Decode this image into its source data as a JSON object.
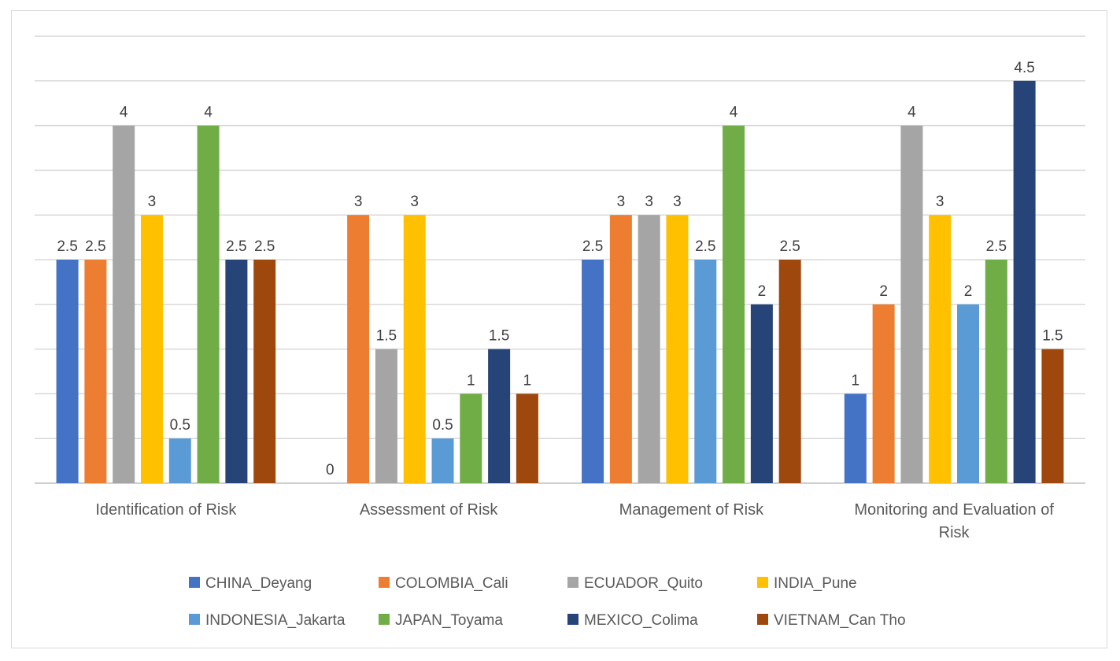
{
  "chart_data": {
    "type": "bar",
    "title": "",
    "xlabel": "",
    "ylabel": "",
    "ylim": [
      0,
      5
    ],
    "grid_step": 0.5,
    "grid": true,
    "legend_position": "bottom",
    "categories": [
      [
        "Identification of Risk"
      ],
      [
        "Assessment of Risk"
      ],
      [
        "Management of Risk"
      ],
      [
        "Monitoring and Evaluation of",
        "Risk"
      ]
    ],
    "series": [
      {
        "name": "CHINA_Deyang",
        "color": "#4472c4",
        "values": [
          2.5,
          0,
          2.5,
          1
        ]
      },
      {
        "name": "COLOMBIA_Cali",
        "color": "#ed7d31",
        "values": [
          2.5,
          3,
          3,
          2
        ]
      },
      {
        "name": "ECUADOR_Quito",
        "color": "#a5a5a5",
        "values": [
          4,
          1.5,
          3,
          4
        ]
      },
      {
        "name": "INDIA_Pune",
        "color": "#ffc000",
        "values": [
          3,
          3,
          3,
          3
        ]
      },
      {
        "name": "INDONESIA_Jakarta",
        "color": "#5b9bd5",
        "values": [
          0.5,
          0.5,
          2.5,
          2
        ]
      },
      {
        "name": "JAPAN_Toyama",
        "color": "#70ad47",
        "values": [
          4,
          1,
          4,
          2.5
        ]
      },
      {
        "name": "MEXICO_Colima",
        "color": "#264478",
        "values": [
          2.5,
          1.5,
          2,
          4.5
        ]
      },
      {
        "name": "VIETNAM_Can Tho",
        "color": "#9e480e",
        "values": [
          2.5,
          1,
          2.5,
          1.5
        ]
      }
    ]
  }
}
